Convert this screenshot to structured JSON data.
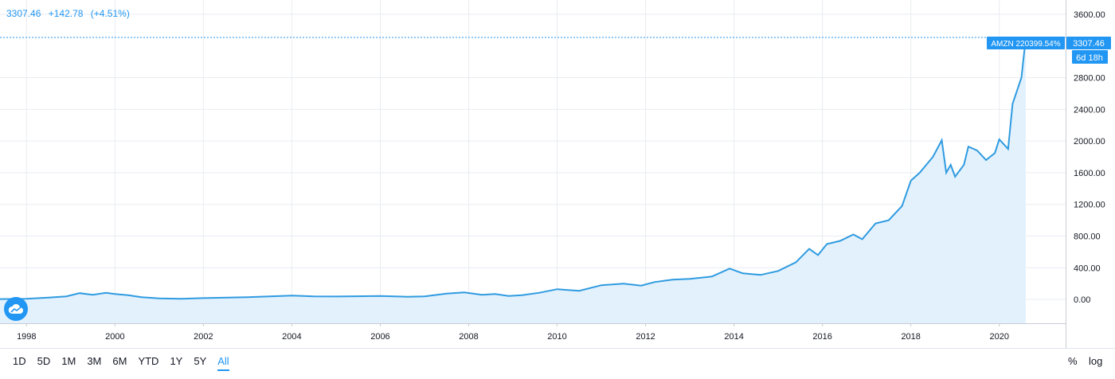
{
  "header": {
    "price": "3307.46",
    "change": "+142.78",
    "change_pct": "(+4.51%)"
  },
  "price_label": {
    "symbol_tag": "AMZN 220399.54%",
    "price": "3307.46",
    "countdown": "6d 18h"
  },
  "footer": {
    "ranges": [
      "1D",
      "5D",
      "1M",
      "3M",
      "6M",
      "YTD",
      "1Y",
      "5Y",
      "All"
    ],
    "active_range": "All",
    "percent_label": "%",
    "log_label": "log"
  },
  "colors": {
    "line": "#2f9be0",
    "accent": "#2196f3",
    "area": "#e3f1fd",
    "grid": "#e9ecf2"
  },
  "logo_icon": "cloud-logo-icon",
  "chart_data": {
    "type": "area",
    "xlabel": "",
    "ylabel": "",
    "x_ticks": [
      "1998",
      "2000",
      "2002",
      "2004",
      "2006",
      "2008",
      "2010",
      "2012",
      "2014",
      "2016",
      "2018",
      "2020"
    ],
    "y_ticks": [
      "0.00",
      "400.00",
      "800.00",
      "1200.00",
      "1600.00",
      "2000.00",
      "2400.00",
      "2800.00",
      "3600.00"
    ],
    "xlim": [
      1997.4,
      2021.5
    ],
    "ylim": [
      -300,
      3780
    ],
    "grid": true,
    "last_value": 3307.46,
    "series": [
      {
        "x": [
          1997.4,
          1998.0,
          1998.5,
          1998.9,
          1999.2,
          1999.5,
          1999.8,
          2000.0,
          2000.3,
          2000.6,
          2001.0,
          2001.5,
          2002.0,
          2003.0,
          2004.0,
          2004.5,
          2005.0,
          2006.0,
          2006.6,
          2007.0,
          2007.5,
          2007.9,
          2008.3,
          2008.6,
          2008.9,
          2009.2,
          2009.6,
          2010.0,
          2010.5,
          2011.0,
          2011.5,
          2011.9,
          2012.2,
          2012.6,
          2013.0,
          2013.5,
          2013.9,
          2014.2,
          2014.6,
          2015.0,
          2015.4,
          2015.7,
          2015.9,
          2016.1,
          2016.4,
          2016.7,
          2016.9,
          2017.2,
          2017.5,
          2017.8,
          2018.0,
          2018.2,
          2018.5,
          2018.7,
          2018.8,
          2018.9,
          2019.0,
          2019.2,
          2019.3,
          2019.5,
          2019.7,
          2019.9,
          2020.0,
          2020.2,
          2020.3,
          2020.5,
          2020.6
        ],
        "values": [
          5,
          10,
          25,
          40,
          80,
          60,
          85,
          70,
          55,
          30,
          15,
          10,
          18,
          30,
          50,
          40,
          38,
          45,
          35,
          40,
          75,
          90,
          60,
          70,
          45,
          55,
          85,
          130,
          110,
          180,
          200,
          175,
          220,
          250,
          260,
          290,
          390,
          330,
          310,
          360,
          470,
          640,
          560,
          700,
          740,
          820,
          760,
          960,
          1000,
          1180,
          1500,
          1600,
          1800,
          2010,
          1600,
          1700,
          1550,
          1700,
          1930,
          1880,
          1760,
          1850,
          2020,
          1900,
          2470,
          2800,
          3307
        ]
      }
    ]
  }
}
